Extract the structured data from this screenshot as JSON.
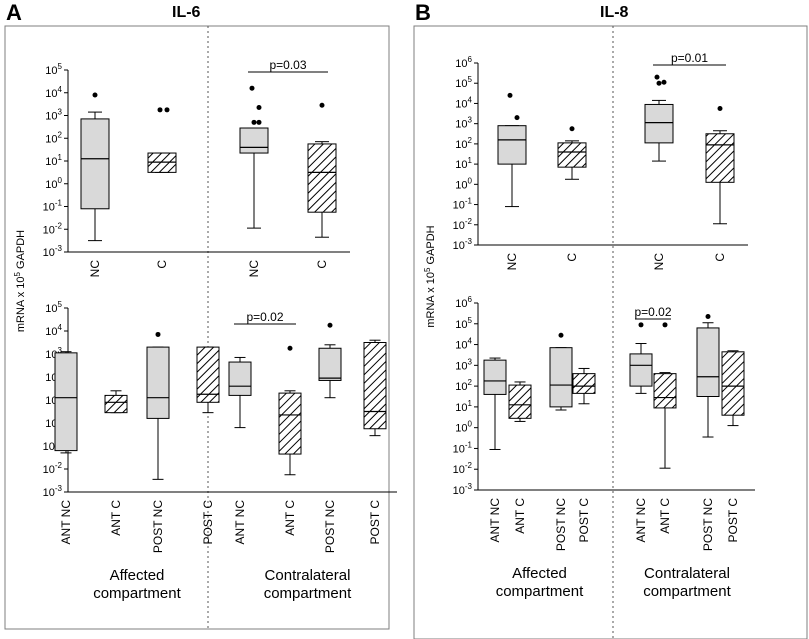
{
  "figure": {
    "y_axis_label_pre": "mRNA x 10",
    "y_axis_label_sup": "5",
    "y_axis_label_post": " GAPDH",
    "affected_line1": "Affected",
    "affected_line2": "compartment",
    "contralateral_line1": "Contralateral",
    "contralateral_line2": "compartment"
  },
  "chart_data": [
    {
      "panel": "A",
      "title": "IL-6",
      "type": "boxplot",
      "ylim_log10": [
        -3,
        5
      ],
      "top": {
        "categories": [
          "NC",
          "C",
          "NC",
          "C"
        ],
        "significance": {
          "label": "p=0.03",
          "between": [
            2,
            3
          ]
        },
        "boxes": [
          {
            "label": "NC",
            "group": "Affected compartment",
            "hatched": false,
            "min": -2.5,
            "q1": -1.1,
            "median": 1.1,
            "q3": 2.85,
            "max": 3.15,
            "outliers": [
              3.9
            ]
          },
          {
            "label": "C",
            "group": "Affected compartment",
            "hatched": true,
            "min": 0.5,
            "q1": 0.5,
            "median": 0.95,
            "q3": 1.35,
            "max": 1.35,
            "outliers": [
              3.25,
              3.25
            ]
          },
          {
            "label": "NC",
            "group": "Contralateral compartment",
            "hatched": false,
            "min": -1.95,
            "q1": 1.35,
            "median": 1.6,
            "q3": 2.45,
            "max": 2.45,
            "outliers": [
              4.2,
              3.35,
              2.7,
              2.7
            ]
          },
          {
            "label": "C",
            "group": "Contralateral compartment",
            "hatched": true,
            "min": -2.35,
            "q1": -1.25,
            "median": 0.5,
            "q3": 1.75,
            "max": 1.85,
            "outliers": [
              3.45
            ]
          }
        ]
      },
      "bottom": {
        "categories": [
          "ANT NC",
          "ANT C",
          "POST NC",
          "POST C",
          "ANT NC",
          "ANT C",
          "POST NC",
          "POST C"
        ],
        "significance": {
          "label": "p=0.02",
          "between": [
            4,
            5
          ]
        },
        "boxes": [
          {
            "label": "ANT NC",
            "group": "Affected compartment",
            "hatched": false,
            "min": -1.3,
            "q1": -1.2,
            "median": 1.1,
            "q3": 3.05,
            "max": 3.1,
            "outliers": []
          },
          {
            "label": "ANT C",
            "group": "Affected compartment",
            "hatched": true,
            "min": 0.45,
            "q1": 0.45,
            "median": 0.9,
            "q3": 1.2,
            "max": 1.4,
            "outliers": []
          },
          {
            "label": "POST NC",
            "group": "Affected compartment",
            "hatched": false,
            "min": -2.45,
            "q1": 0.2,
            "median": 1.1,
            "q3": 3.3,
            "max": 3.3,
            "outliers": [
              3.85
            ]
          },
          {
            "label": "POST C",
            "group": "Affected compartment",
            "hatched": true,
            "min": 0.45,
            "q1": 0.9,
            "median": 1.25,
            "q3": 3.3,
            "max": 3.3,
            "outliers": []
          },
          {
            "label": "ANT NC",
            "group": "Contralateral compartment",
            "hatched": false,
            "min": -0.2,
            "q1": 1.2,
            "median": 1.6,
            "q3": 2.65,
            "max": 2.85,
            "outliers": []
          },
          {
            "label": "ANT C",
            "group": "Contralateral compartment",
            "hatched": true,
            "min": -2.25,
            "q1": -1.35,
            "median": 0.35,
            "q3": 1.3,
            "max": 1.4,
            "outliers": [
              3.25
            ]
          },
          {
            "label": "POST NC",
            "group": "Contralateral compartment",
            "hatched": false,
            "min": 1.1,
            "q1": 1.85,
            "median": 1.95,
            "q3": 3.25,
            "max": 3.4,
            "outliers": [
              4.25
            ]
          },
          {
            "label": "POST C",
            "group": "Contralateral compartment",
            "hatched": true,
            "min": -0.55,
            "q1": -0.25,
            "median": 0.5,
            "q3": 3.5,
            "max": 3.6,
            "outliers": []
          }
        ]
      }
    },
    {
      "panel": "B",
      "title": "IL-8",
      "type": "boxplot",
      "ylim_log10": [
        -3,
        6
      ],
      "top": {
        "categories": [
          "NC",
          "C",
          "NC",
          "C"
        ],
        "significance": {
          "label": "p=0.01",
          "between": [
            2,
            3
          ]
        },
        "boxes": [
          {
            "label": "NC",
            "group": "Affected compartment",
            "hatched": false,
            "min": -1.1,
            "q1": 1.0,
            "median": 2.2,
            "q3": 2.9,
            "max": 2.9,
            "outliers": [
              4.4,
              3.3
            ]
          },
          {
            "label": "C",
            "group": "Affected compartment",
            "hatched": true,
            "min": 0.25,
            "q1": 0.85,
            "median": 1.6,
            "q3": 2.05,
            "max": 2.15,
            "outliers": [
              2.75
            ]
          },
          {
            "label": "NC",
            "group": "Contralateral compartment",
            "hatched": false,
            "min": 1.15,
            "q1": 2.05,
            "median": 3.05,
            "q3": 3.95,
            "max": 4.15,
            "outliers": [
              5.3,
              5.05,
              5.0
            ]
          },
          {
            "label": "C",
            "group": "Contralateral compartment",
            "hatched": true,
            "min": -1.95,
            "q1": 0.1,
            "median": 1.95,
            "q3": 2.5,
            "max": 2.65,
            "outliers": [
              3.75
            ]
          }
        ]
      },
      "bottom": {
        "categories": [
          "ANT NC",
          "ANT C",
          "POST NC",
          "POST C",
          "ANT NC",
          "ANT C",
          "POST NC",
          "POST C"
        ],
        "significance": {
          "label": "p=0.02",
          "between": [
            4,
            5
          ]
        },
        "boxes": [
          {
            "label": "ANT NC",
            "group": "Affected compartment",
            "hatched": false,
            "min": -1.05,
            "q1": 1.6,
            "median": 2.25,
            "q3": 3.25,
            "max": 3.35,
            "outliers": []
          },
          {
            "label": "ANT C",
            "group": "Affected compartment",
            "hatched": true,
            "min": 0.3,
            "q1": 0.45,
            "median": 1.1,
            "q3": 2.05,
            "max": 2.2,
            "outliers": []
          },
          {
            "label": "POST NC",
            "group": "Affected compartment",
            "hatched": false,
            "min": 0.85,
            "q1": 1.0,
            "median": 2.05,
            "q3": 3.85,
            "max": 3.85,
            "outliers": [
              4.45
            ]
          },
          {
            "label": "POST C",
            "group": "Affected compartment",
            "hatched": true,
            "min": 1.15,
            "q1": 1.65,
            "median": 2.0,
            "q3": 2.6,
            "max": 2.85,
            "outliers": []
          },
          {
            "label": "ANT NC",
            "group": "Contralateral compartment",
            "hatched": false,
            "min": 1.65,
            "q1": 2.0,
            "median": 3.0,
            "q3": 3.55,
            "max": 4.05,
            "outliers": [
              4.95
            ]
          },
          {
            "label": "ANT C",
            "group": "Contralateral compartment",
            "hatched": true,
            "min": -1.95,
            "q1": 0.95,
            "median": 1.45,
            "q3": 2.6,
            "max": 2.65,
            "outliers": [
              4.95
            ]
          },
          {
            "label": "POST NC",
            "group": "Contralateral compartment",
            "hatched": false,
            "min": -0.45,
            "q1": 1.5,
            "median": 2.45,
            "q3": 4.8,
            "max": 5.05,
            "outliers": [
              5.35
            ]
          },
          {
            "label": "POST C",
            "group": "Contralateral compartment",
            "hatched": true,
            "min": 0.1,
            "q1": 0.6,
            "median": 2.0,
            "q3": 3.65,
            "max": 3.7,
            "outliers": []
          }
        ]
      }
    }
  ]
}
